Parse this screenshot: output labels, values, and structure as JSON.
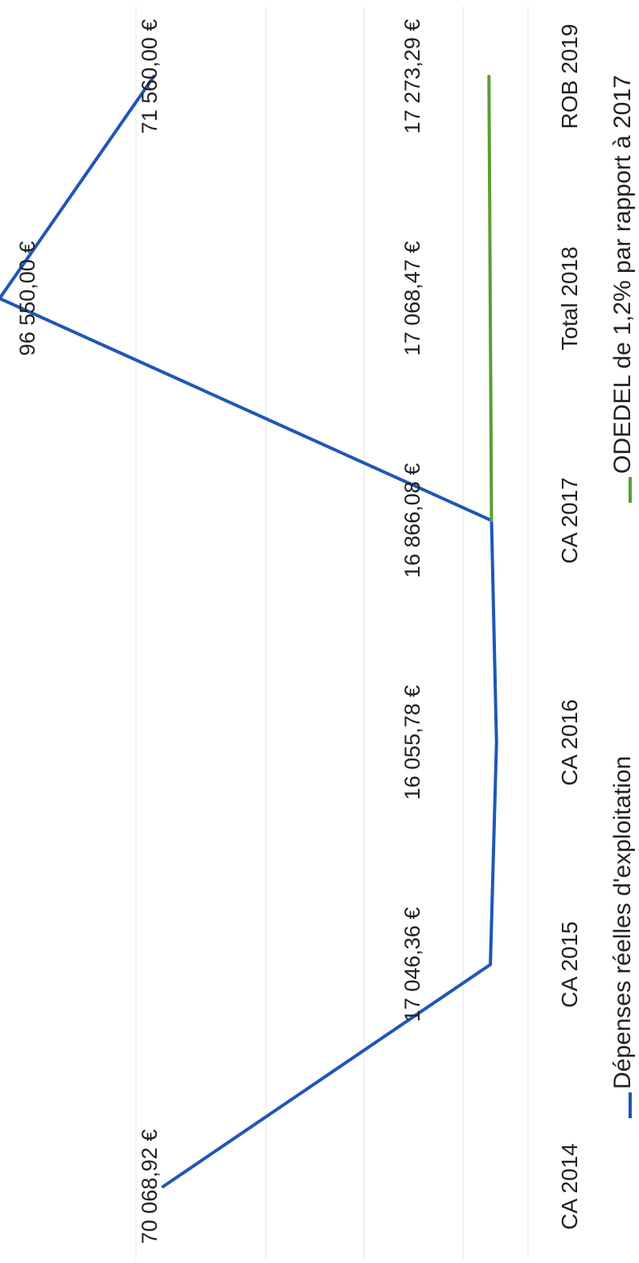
{
  "chart_data": {
    "type": "line",
    "categories": [
      "CA 2014",
      "CA 2015",
      "CA 2016",
      "CA 2017",
      "Total 2018",
      "ROB 2019"
    ],
    "series": [
      {
        "name": "Dépenses réelles d'exploitation",
        "color": "#1f56b8",
        "values": [
          70068.92,
          17046.36,
          16055.78,
          16866.08,
          96550.0,
          71560.0
        ],
        "labels": [
          "70 068,92 €",
          "17 046,36 €",
          "16 055,78 €",
          "16 866,08 €",
          "96 550,00 €",
          "71 560,00 €"
        ]
      },
      {
        "name": "ODEDEL de 1,2% par rapport à 2017",
        "color": "#5a9e32",
        "values": [
          null,
          null,
          null,
          16866.08,
          17068.47,
          17273.29
        ],
        "labels": [
          "",
          "",
          "",
          "",
          "17 068,47 €",
          "17 273,29 €"
        ]
      }
    ],
    "ylim": [
      0,
      100000
    ],
    "grid": true,
    "legend": "bottom",
    "orientation": "rotated-90-clockwise"
  }
}
